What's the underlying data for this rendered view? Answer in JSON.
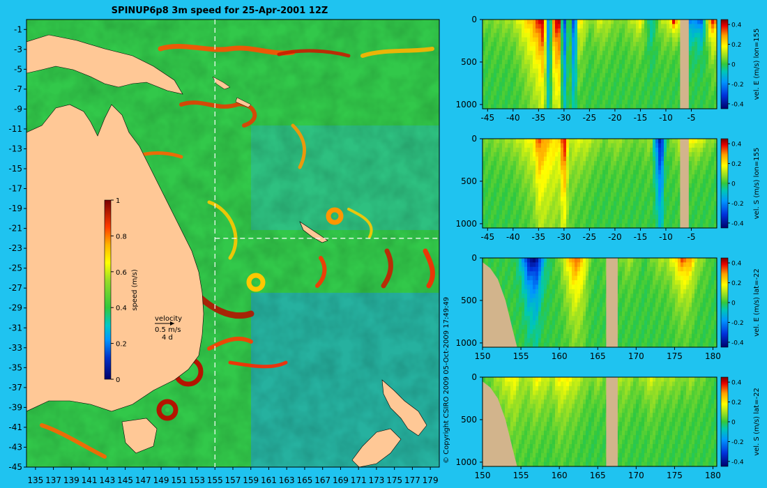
{
  "title": "SPINUP6p8 3m speed for 25-Apr-2001 12Z",
  "copyright": "© Copyright CSIRO 2009  05-Oct-2009 17:49:49",
  "map": {
    "xticks": [
      "135",
      "137",
      "139",
      "141",
      "143",
      "145",
      "147",
      "149",
      "151",
      "153",
      "155",
      "157",
      "159",
      "161",
      "163",
      "165",
      "167",
      "169",
      "171",
      "173",
      "175",
      "177",
      "179"
    ],
    "yticks": [
      "-1",
      "-3",
      "-5",
      "-7",
      "-9",
      "-11",
      "-13",
      "-15",
      "-17",
      "-19",
      "-21",
      "-23",
      "-25",
      "-27",
      "-29",
      "-31",
      "-33",
      "-35",
      "-37",
      "-39",
      "-41",
      "-43",
      "-45"
    ],
    "xlim": [
      134,
      180
    ],
    "ylim": [
      -45,
      0
    ],
    "section_lon": 155,
    "section_lat": -22,
    "colorbar": {
      "label": "speed (m/s)",
      "ticks": [
        "1",
        "0.8",
        "0.6",
        "0.4",
        "0.2",
        "0"
      ],
      "range": [
        0,
        1
      ]
    },
    "velocity_key": {
      "line1": "velocity",
      "line2": "0.5 m/s",
      "line3": "4 d"
    },
    "colors": {
      "land": "#ffc896",
      "background": "#1fc3f0"
    }
  },
  "chart_data": [
    {
      "type": "heatmap",
      "name": "vel_E_lon155",
      "clabel": "vel. E (m/s) lon=155",
      "xticks": [
        "-45",
        "-40",
        "-35",
        "-30",
        "-25",
        "-20",
        "-15",
        "-10",
        "-5"
      ],
      "yticks": [
        "0",
        "500",
        "1000"
      ],
      "cticks": [
        "0.4",
        "0.2",
        "0",
        "-0.2",
        "-0.4"
      ],
      "xlim": [
        -46,
        0
      ],
      "ylim": [
        0,
        1050
      ],
      "clim": [
        -0.45,
        0.45
      ],
      "x": [
        -45,
        -40,
        -36,
        -34,
        -33,
        -32,
        -31,
        -30,
        -29,
        -28,
        -27,
        -25,
        -23,
        -21,
        -19,
        -17,
        -15,
        -13,
        -11,
        -9,
        -8.5,
        -7,
        -6,
        -4,
        -3,
        -2,
        -1,
        0
      ],
      "surface": [
        0.05,
        0.1,
        0.3,
        0.45,
        -0.3,
        0.35,
        0.45,
        -0.35,
        0.1,
        -0.35,
        0.25,
        0.05,
        0.15,
        0.1,
        0.05,
        0.1,
        0.2,
        -0.1,
        0.1,
        0.2,
        0.45,
        0.1,
        -0.25,
        -0.2,
        -0.3,
        0.1,
        0.4,
        0.3
      ],
      "decay_m": [
        300,
        300,
        700,
        900,
        900,
        900,
        1000,
        1000,
        700,
        900,
        400,
        250,
        300,
        300,
        250,
        300,
        250,
        300,
        300,
        200,
        150,
        200,
        200,
        200,
        200,
        200,
        300,
        300
      ],
      "land_x": [
        [
          -7.2,
          -5.5
        ]
      ],
      "bottom_m": null
    },
    {
      "type": "heatmap",
      "name": "vel_S_lon155",
      "clabel": "vel. S (m/s) lon=155",
      "xticks": [
        "-45",
        "-40",
        "-35",
        "-30",
        "-25",
        "-20",
        "-15",
        "-10",
        "-5"
      ],
      "yticks": [
        "0",
        "500",
        "1000"
      ],
      "cticks": [
        "0.4",
        "0.2",
        "0",
        "-0.2",
        "-0.4"
      ],
      "xlim": [
        -46,
        0
      ],
      "ylim": [
        0,
        1050
      ],
      "clim": [
        -0.45,
        0.45
      ],
      "x": [
        -45,
        -40,
        -36,
        -35,
        -33,
        -31,
        -30,
        -29,
        -28,
        -26,
        -24,
        -22,
        -20,
        -17,
        -15,
        -13,
        -11.5,
        -11,
        -10,
        -8,
        -6,
        -4,
        -2,
        0
      ],
      "surface": [
        0.05,
        0.1,
        0.2,
        0.35,
        0.25,
        0.2,
        0.45,
        0.1,
        0.15,
        0.15,
        0.1,
        0.05,
        0.1,
        0.05,
        0.05,
        0.1,
        -0.3,
        -0.45,
        0.0,
        0.1,
        0.2,
        0.2,
        0.1,
        0.05
      ],
      "decay_m": [
        300,
        300,
        600,
        900,
        900,
        900,
        1000,
        900,
        500,
        400,
        300,
        300,
        300,
        300,
        300,
        300,
        700,
        800,
        300,
        300,
        200,
        200,
        200,
        200
      ],
      "land_x": [
        [
          -7.2,
          -5.5
        ]
      ],
      "bottom_m": null
    },
    {
      "type": "heatmap",
      "name": "vel_E_lat22",
      "clabel": "vel. E (m/s) lat=-22",
      "xticks": [
        "150",
        "155",
        "160",
        "165",
        "170",
        "175",
        "180"
      ],
      "yticks": [
        "0",
        "500",
        "1000"
      ],
      "cticks": [
        "0.4",
        "0.2",
        "0",
        "-0.2",
        "-0.4"
      ],
      "xlim": [
        150,
        180.5
      ],
      "ylim": [
        0,
        1050
      ],
      "clim": [
        -0.45,
        0.45
      ],
      "x": [
        150,
        154,
        155,
        156,
        157,
        158,
        159,
        160,
        161,
        162,
        163,
        164,
        165,
        166,
        167,
        168,
        169,
        170,
        171,
        172,
        173,
        174,
        175,
        176,
        177,
        178,
        179,
        180
      ],
      "surface": [
        0.0,
        0.0,
        -0.1,
        -0.4,
        -0.45,
        -0.1,
        0.0,
        0.05,
        0.2,
        0.35,
        0.25,
        0.05,
        0.0,
        0.05,
        0.0,
        0.05,
        0.1,
        0.05,
        0.0,
        0.05,
        0.1,
        0.1,
        0.2,
        0.35,
        0.3,
        0.1,
        0.05,
        0.0
      ],
      "decay_m": [
        300,
        300,
        300,
        400,
        450,
        300,
        300,
        400,
        500,
        600,
        600,
        400,
        300,
        300,
        300,
        300,
        300,
        300,
        300,
        300,
        300,
        300,
        400,
        400,
        400,
        300,
        300,
        300
      ],
      "land_x": [
        [
          166.1,
          167.6
        ]
      ],
      "bottom_m": [
        [
          150,
          50
        ],
        [
          151,
          120
        ],
        [
          152,
          250
        ],
        [
          153,
          500
        ],
        [
          153.8,
          800
        ],
        [
          154.5,
          1050
        ]
      ]
    },
    {
      "type": "heatmap",
      "name": "vel_S_lat22",
      "clabel": "vel. S (m/s) lat=-22",
      "xticks": [
        "150",
        "155",
        "160",
        "165",
        "170",
        "175",
        "180"
      ],
      "yticks": [
        "0",
        "500",
        "1000"
      ],
      "cticks": [
        "0.4",
        "0.2",
        "0",
        "-0.2",
        "-0.4"
      ],
      "xlim": [
        150,
        180.5
      ],
      "ylim": [
        0,
        1050
      ],
      "clim": [
        -0.45,
        0.45
      ],
      "x": [
        150,
        154,
        155,
        156,
        157,
        158,
        159,
        160,
        161,
        162,
        163,
        164,
        165,
        166,
        167,
        168,
        169,
        170,
        171,
        172,
        173,
        174,
        175,
        176,
        177,
        178,
        179,
        180
      ],
      "surface": [
        0.0,
        0.2,
        0.1,
        0.1,
        0.2,
        0.15,
        0.1,
        0.2,
        0.2,
        0.15,
        0.1,
        0.05,
        0.1,
        0.05,
        0.1,
        0.1,
        0.1,
        0.05,
        0.1,
        0.15,
        0.1,
        0.1,
        0.1,
        0.05,
        0.1,
        0.05,
        0.05,
        0.0
      ],
      "decay_m": [
        300,
        500,
        600,
        500,
        400,
        400,
        400,
        500,
        400,
        400,
        400,
        300,
        300,
        300,
        400,
        400,
        400,
        300,
        300,
        400,
        300,
        300,
        300,
        300,
        300,
        300,
        300,
        300
      ],
      "land_x": [
        [
          166.1,
          167.6
        ]
      ],
      "bottom_m": [
        [
          150,
          50
        ],
        [
          151,
          120
        ],
        [
          152,
          250
        ],
        [
          153,
          500
        ],
        [
          153.8,
          800
        ],
        [
          154.5,
          1050
        ]
      ]
    }
  ]
}
